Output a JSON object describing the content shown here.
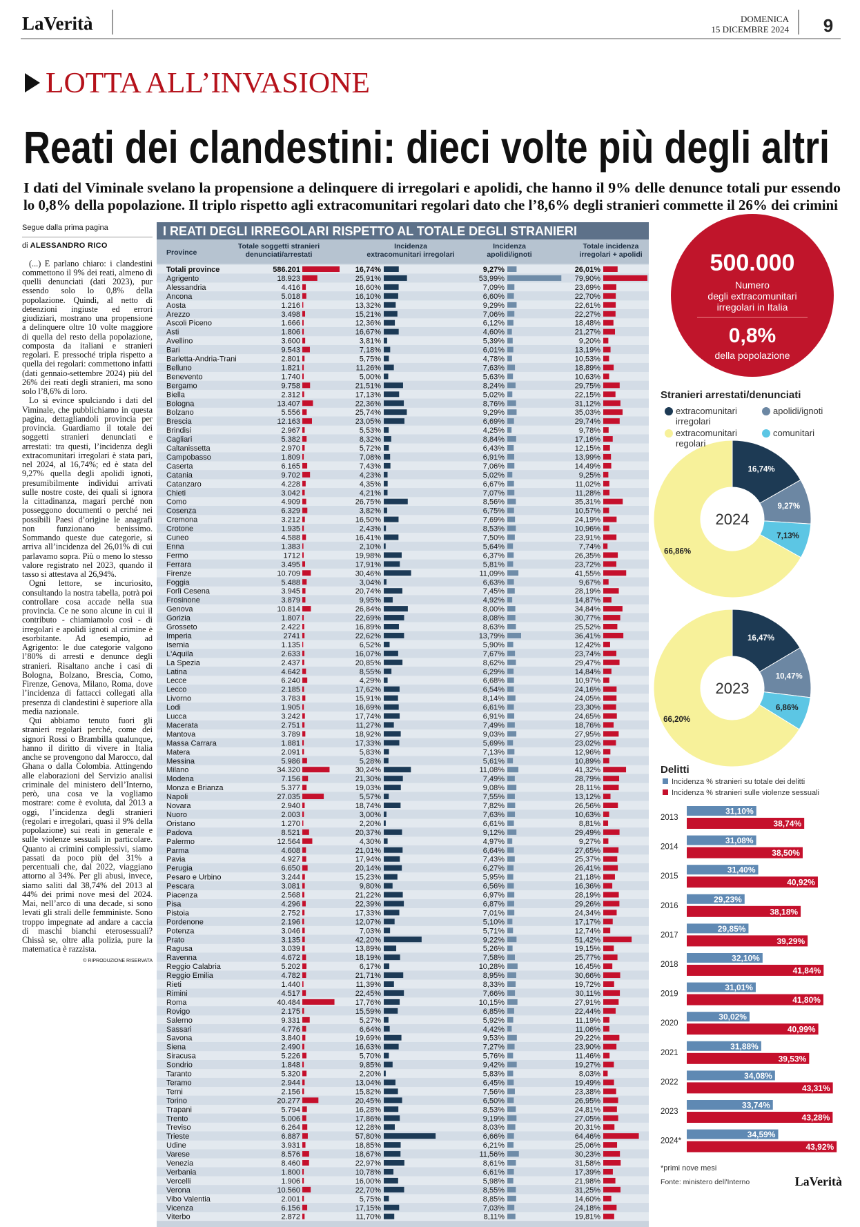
{
  "header": {
    "logo": "LaVerità",
    "day": "DOMENICA",
    "date": "15 DICEMBRE 2024",
    "page": "9"
  },
  "section": "LOTTA ALL’INVASIONE",
  "headline": "Reati dei clandestini: dieci volte più degli altri",
  "subheadline": [
    "I dati del Viminale svelano la propensione a delinquere di irregolari e apolidi, che hanno il 9% delle denunce totali pur essendo",
    "lo 0,8% della popolazione. Il triplo rispetto agli extracomunitari regolari dato che l’8,6% degli stranieri commette il 26% dei crimini"
  ],
  "article": {
    "kicker": "Segue dalla prima pagina",
    "byline_prefix": "di",
    "author": "ALESSANDRO RICO",
    "paragraphs": [
      "(...) E parlano chiaro: i clandestini commettono il 9% dei reati, almeno di quelli denunciati (dati 2023), pur essendo solo lo 0,8% della popolazione. Quindi, al netto di detenzioni ingiuste ed errori giudiziari, mostrano una propensione a delinquere oltre 10 volte maggiore di quella del resto della popolazione, composta da italiani e stranieri regolari. E pressoché tripla rispetto a quella dei regolari: commettono infatti (dati gennaio-settembre 2024) più del 26% dei reati degli stranieri, ma sono solo l’8,6% di loro.",
      "Lo si evince spulciando i dati del Viminale, che pubblichiamo in questa pagina, dettagliandoli provincia per provincia. Guardiamo il totale dei soggetti stranieri denunciati e arrestati: tra questi, l’incidenza degli extracomunitari irregolari è stata pari, nel 2024, al 16,74%; ed è stata del 9,27% quella degli apolidi ignoti, presumibilmente individui arrivati sulle nostre coste, dei quali si ignora la cittadinanza, magari perché non posseggono documenti o perché nei possibili Paesi d’origine le anagrafi non funzionano benissimo. Sommando queste due categorie, si arriva all’incidenza del 26,01% di cui parlavamo sopra. Più o meno lo stesso valore registrato nel 2023, quando il tasso si attestava al 26,94%.",
      "Ogni lettore, se incuriosito, consultando la nostra tabella, potrà poi controllare cosa accade nella sua provincia. Ce ne sono alcune in cui il contributo - chiamiamolo così - di irregolari e apolidi ignoti al crimine è esorbitante. Ad esempio, ad Agrigento: le due categorie valgono l’80% di arresti e denunce degli stranieri. Risaltano anche i casi di Bologna, Bolzano, Brescia, Como, Firenze, Genova, Milano, Roma, dove l’incidenza di fattacci collegati alla presenza di clandestini è superiore alla media nazionale.",
      "Qui abbiamo tenuto fuori gli stranieri regolari perché, come dei signori Rossi o Brambilla qualunque, hanno il diritto di vivere in Italia anche se provengono dal Marocco, dal Ghana o dalla Colombia. Attingendo alle elaborazioni del Servizio analisi criminale del ministero dell’Interno, però, una cosa ve la vogliamo mostrare: come è evoluta, dal 2013 a oggi, l’incidenza degli stranieri (regolari e irregolari, quasi il 9% della popolazione) sui reati in generale e sulle violenze sessuali in particolare. Quanto ai crimini complessivi, siamo passati da poco più del 31% a percentuali che, dal 2022, viaggiano attorno al 34%. Per gli abusi, invece, siamo saliti dal 38,74% del 2013 al 44% dei primi nove mesi del 2024. Mai, nell’arco di una decade, si sono levati gli strali delle femministe. Sono troppo impegnate ad andare a caccia di maschi bianchi eterosessuali? Chissà se, oltre alla polizia, pure la matematica è razzista."
    ],
    "copyright": "© RIPRODUZIONE RISERVATA"
  },
  "table": {
    "title": "I REATI DEGLI IRREGOLARI RISPETTO AL TOTALE DEGLI STRANIERI",
    "columns": [
      [
        "Province"
      ],
      [
        "Totale soggetti stranieri",
        "denunciati/arrestati"
      ],
      [
        "Incidenza",
        "extracomunitari irregolari"
      ],
      [
        "Incidenza",
        "apolidi/ignoti"
      ],
      [
        "Totale incidenza",
        "irregolari + apolidi"
      ]
    ],
    "rows": [
      [
        "Totali province",
        "586.201",
        "16,74%",
        "9,27%",
        "26,01%"
      ],
      [
        "Agrigento",
        "18.923",
        "25,91%",
        "53,99%",
        "79,90%"
      ],
      [
        "Alessandria",
        "4.416",
        "16,60%",
        "7,09%",
        "23,69%"
      ],
      [
        "Ancona",
        "5.018",
        "16,10%",
        "6,60%",
        "22,70%"
      ],
      [
        "Aosta",
        "1.216",
        "13,32%",
        "9,29%",
        "22,61%"
      ],
      [
        "Arezzo",
        "3.498",
        "15,21%",
        "7,06%",
        "22,27%"
      ],
      [
        "Ascoli Piceno",
        "1.666",
        "12,36%",
        "6,12%",
        "18,48%"
      ],
      [
        "Asti",
        "1.806",
        "16,67%",
        "4,60%",
        "21,27%"
      ],
      [
        "Avellino",
        "3.600",
        "3,81%",
        "5,39%",
        "9,20%"
      ],
      [
        "Bari",
        "9.543",
        "7,18%",
        "6,01%",
        "13,19%"
      ],
      [
        "Barletta-Andria-Trani",
        "2.801",
        "5,75%",
        "4,78%",
        "10,53%"
      ],
      [
        "Belluno",
        "1.821",
        "11,26%",
        "7,63%",
        "18,89%"
      ],
      [
        "Benevento",
        "1.740",
        "5,00%",
        "5,63%",
        "10,63%"
      ],
      [
        "Bergamo",
        "9.758",
        "21,51%",
        "8,24%",
        "29,75%"
      ],
      [
        "Biella",
        "2.312",
        "17,13%",
        "5,02%",
        "22,15%"
      ],
      [
        "Bologna",
        "13.407",
        "22,36%",
        "8,76%",
        "31,12%"
      ],
      [
        "Bolzano",
        "5.556",
        "25,74%",
        "9,29%",
        "35,03%"
      ],
      [
        "Brescia",
        "12.163",
        "23,05%",
        "6,69%",
        "29,74%"
      ],
      [
        "Brindisi",
        "2.967",
        "5,53%",
        "4,25%",
        "9,78%"
      ],
      [
        "Cagliari",
        "5.382",
        "8,32%",
        "8,84%",
        "17,16%"
      ],
      [
        "Caltanissetta",
        "2.970",
        "5,72%",
        "6,43%",
        "12,15%"
      ],
      [
        "Campobasso",
        "1.809",
        "7,08%",
        "6,91%",
        "13,99%"
      ],
      [
        "Caserta",
        "6.165",
        "7,43%",
        "7,06%",
        "14,49%"
      ],
      [
        "Catania",
        "9.702",
        "4,23%",
        "5,02%",
        "9,25%"
      ],
      [
        "Catanzaro",
        "4.228",
        "4,35%",
        "6,67%",
        "11,02%"
      ],
      [
        "Chieti",
        "3.042",
        "4,21%",
        "7,07%",
        "11,28%"
      ],
      [
        "Como",
        "4.909",
        "26,75%",
        "8,56%",
        "35,31%"
      ],
      [
        "Cosenza",
        "6.329",
        "3,82%",
        "6,75%",
        "10,57%"
      ],
      [
        "Cremona",
        "3.212",
        "16,50%",
        "7,69%",
        "24,19%"
      ],
      [
        "Crotone",
        "1.935",
        "2,43%",
        "8,53%",
        "10,96%"
      ],
      [
        "Cuneo",
        "4.588",
        "16,41%",
        "7,50%",
        "23,91%"
      ],
      [
        "Enna",
        "1.383",
        "2,10%",
        "5,64%",
        "7,74%"
      ],
      [
        "Fermo",
        "1712",
        "19,98%",
        "6,37%",
        "26,35%"
      ],
      [
        "Ferrara",
        "3.495",
        "17,91%",
        "5,81%",
        "23,72%"
      ],
      [
        "Firenze",
        "10.709",
        "30,46%",
        "11,09%",
        "41,55%"
      ],
      [
        "Foggia",
        "5.488",
        "3,04%",
        "6,63%",
        "9,67%"
      ],
      [
        "Forlì Cesena",
        "3.945",
        "20,74%",
        "7,45%",
        "28,19%"
      ],
      [
        "Frosinone",
        "3.879",
        "9,95%",
        "4,92%",
        "14,87%"
      ],
      [
        "Genova",
        "10.814",
        "26,84%",
        "8,00%",
        "34,84%"
      ],
      [
        "Gorizia",
        "1.807",
        "22,69%",
        "8,08%",
        "30,77%"
      ],
      [
        "Grosseto",
        "2.422",
        "16,89%",
        "8,63%",
        "25,52%"
      ],
      [
        "Imperia",
        "2741",
        "22,62%",
        "13,79%",
        "36,41%"
      ],
      [
        "Isernia",
        "1.135",
        "6,52%",
        "5,90%",
        "12,42%"
      ],
      [
        "L'Aquila",
        "2.633",
        "16,07%",
        "7,67%",
        "23,74%"
      ],
      [
        "La Spezia",
        "2.437",
        "20,85%",
        "8,62%",
        "29,47%"
      ],
      [
        "Latina",
        "4.642",
        "8,55%",
        "6,29%",
        "14,84%"
      ],
      [
        "Lecce",
        "6.240",
        "4,29%",
        "6,68%",
        "10,97%"
      ],
      [
        "Lecco",
        "2.185",
        "17,62%",
        "6,54%",
        "24,16%"
      ],
      [
        "Livorno",
        "3.783",
        "15,91%",
        "8,14%",
        "24,05%"
      ],
      [
        "Lodi",
        "1.905",
        "16,69%",
        "6,61%",
        "23,30%"
      ],
      [
        "Lucca",
        "3.242",
        "17,74%",
        "6,91%",
        "24,65%"
      ],
      [
        "Macerata",
        "2.751",
        "11,27%",
        "7,49%",
        "18,76%"
      ],
      [
        "Mantova",
        "3.789",
        "18,92%",
        "9,03%",
        "27,95%"
      ],
      [
        "Massa Carrara",
        "1.881",
        "17,33%",
        "5,69%",
        "23,02%"
      ],
      [
        "Matera",
        "2.091",
        "5,83%",
        "7,13%",
        "12,96%"
      ],
      [
        "Messina",
        "5.986",
        "5,28%",
        "5,61%",
        "10,89%"
      ],
      [
        "Milano",
        "34.320",
        "30,24%",
        "11,08%",
        "41,32%"
      ],
      [
        "Modena",
        "7.156",
        "21,30%",
        "7,49%",
        "28,79%"
      ],
      [
        "Monza e Brianza",
        "5.377",
        "19,03%",
        "9,08%",
        "28,11%"
      ],
      [
        "Napoli",
        "27.035",
        "5,57%",
        "7,55%",
        "13,12%"
      ],
      [
        "Novara",
        "2.940",
        "18,74%",
        "7,82%",
        "26,56%"
      ],
      [
        "Nuoro",
        "2.003",
        "3,00%",
        "7,63%",
        "10,63%"
      ],
      [
        "Oristano",
        "1.270",
        "2,20%",
        "6,61%",
        "8,81%"
      ],
      [
        "Padova",
        "8.521",
        "20,37%",
        "9,12%",
        "29,49%"
      ],
      [
        "Palermo",
        "12.564",
        "4,30%",
        "4,97%",
        "9,27%"
      ],
      [
        "Parma",
        "4.608",
        "21,01%",
        "6,64%",
        "27,65%"
      ],
      [
        "Pavia",
        "4.927",
        "17,94%",
        "7,43%",
        "25,37%"
      ],
      [
        "Perugia",
        "6.650",
        "20,14%",
        "6,27%",
        "26,41%"
      ],
      [
        "Pesaro e Urbino",
        "3.244",
        "15,23%",
        "5,95%",
        "21,18%"
      ],
      [
        "Pescara",
        "3.081",
        "9,80%",
        "6,56%",
        "16,36%"
      ],
      [
        "Piacenza",
        "2.568",
        "21,22%",
        "6,97%",
        "28,19%"
      ],
      [
        "Pisa",
        "4.296",
        "22,39%",
        "6,87%",
        "29,26%"
      ],
      [
        "Pistoia",
        "2.752",
        "17,33%",
        "7,01%",
        "24,34%"
      ],
      [
        "Pordenone",
        "2.196",
        "12,07%",
        "5,10%",
        "17,17%"
      ],
      [
        "Potenza",
        "3.046",
        "7,03%",
        "5,71%",
        "12,74%"
      ],
      [
        "Prato",
        "3.135",
        "42,20%",
        "9,22%",
        "51,42%"
      ],
      [
        "Ragusa",
        "3.039",
        "13,89%",
        "5,26%",
        "19,15%"
      ],
      [
        "Ravenna",
        "4.672",
        "18,19%",
        "7,58%",
        "25,77%"
      ],
      [
        "Reggio Calabria",
        "5.202",
        "6,17%",
        "10,28%",
        "16,45%"
      ],
      [
        "Reggio Emilia",
        "4.782",
        "21,71%",
        "8,95%",
        "30,66%"
      ],
      [
        "Rieti",
        "1.440",
        "11,39%",
        "8,33%",
        "19,72%"
      ],
      [
        "Rimini",
        "4.517",
        "22,45%",
        "7,66%",
        "30,11%"
      ],
      [
        "Roma",
        "40.484",
        "17,76%",
        "10,15%",
        "27,91%"
      ],
      [
        "Rovigo",
        "2.175",
        "15,59%",
        "6,85%",
        "22,44%"
      ],
      [
        "Salerno",
        "9.331",
        "5,27%",
        "5,92%",
        "11,19%"
      ],
      [
        "Sassari",
        "4.776",
        "6,64%",
        "4,42%",
        "11,06%"
      ],
      [
        "Savona",
        "3.840",
        "19,69%",
        "9,53%",
        "29,22%"
      ],
      [
        "Siena",
        "2.490",
        "16,63%",
        "7,27%",
        "23,90%"
      ],
      [
        "Siracusa",
        "5.226",
        "5,70%",
        "5,76%",
        "11,46%"
      ],
      [
        "Sondrio",
        "1.848",
        "9,85%",
        "9,42%",
        "19,27%"
      ],
      [
        "Taranto",
        "5.320",
        "2,20%",
        "5,83%",
        "8,03%"
      ],
      [
        "Teramo",
        "2.944",
        "13,04%",
        "6,45%",
        "19,49%"
      ],
      [
        "Terni",
        "2.156",
        "15,82%",
        "7,56%",
        "23,38%"
      ],
      [
        "Torino",
        "20.277",
        "20,45%",
        "6,50%",
        "26,95%"
      ],
      [
        "Trapani",
        "5.794",
        "16,28%",
        "8,53%",
        "24,81%"
      ],
      [
        "Trento",
        "5.006",
        "17,86%",
        "9,19%",
        "27,05%"
      ],
      [
        "Treviso",
        "6.264",
        "12,28%",
        "8,03%",
        "20,31%"
      ],
      [
        "Trieste",
        "6.887",
        "57,80%",
        "6,66%",
        "64,46%"
      ],
      [
        "Udine",
        "3.931",
        "18,85%",
        "6,21%",
        "25,06%"
      ],
      [
        "Varese",
        "8.576",
        "18,67%",
        "11,56%",
        "30,23%"
      ],
      [
        "Venezia",
        "8.460",
        "22,97%",
        "8,61%",
        "31,58%"
      ],
      [
        "Verbania",
        "1.800",
        "10,78%",
        "6,61%",
        "17,39%"
      ],
      [
        "Vercelli",
        "1.906",
        "16,00%",
        "5,98%",
        "21,98%"
      ],
      [
        "Verona",
        "10.560",
        "22,70%",
        "8,55%",
        "31,25%"
      ],
      [
        "Vibo Valentia",
        "2.001",
        "5,75%",
        "8,85%",
        "14,60%"
      ],
      [
        "Vicenza",
        "6.156",
        "17,15%",
        "7,03%",
        "24,18%"
      ],
      [
        "Viterbo",
        "2.872",
        "11,70%",
        "8,11%",
        "19,81%"
      ]
    ]
  },
  "highlight": {
    "value": "500.000",
    "label": [
      "Numero",
      "degli extracomunitari",
      "irregolari in Italia"
    ],
    "share": "0,8%",
    "share_label": "della popolazione"
  },
  "chart_data": [
    {
      "type": "donut",
      "title": "Stranieri arrestati/denunciati",
      "categories": [
        "2024",
        "2023"
      ],
      "series": [
        {
          "name": "extracomunitari irregolari",
          "color": "#1d3a54",
          "values": [
            16.74,
            16.47
          ],
          "value_labels": [
            "16,74%",
            "16,47%"
          ]
        },
        {
          "name": "apolidi/ignoti",
          "color": "#6c87a3",
          "values": [
            9.27,
            10.47
          ],
          "value_labels": [
            "9,27%",
            "10,47%"
          ]
        },
        {
          "name": "comunitari",
          "color": "#5cc6e4",
          "values": [
            7.13,
            6.86
          ],
          "value_labels": [
            "7,13%",
            "6,86%"
          ]
        },
        {
          "name": "extracomunitari regolari",
          "color": "#f7f19a",
          "values": [
            66.86,
            66.2
          ],
          "value_labels": [
            "66,86%",
            "66,20%"
          ]
        }
      ]
    },
    {
      "type": "bar",
      "orientation": "horizontal",
      "title": "Delitti",
      "categories": [
        "2013",
        "2014",
        "2015",
        "2016",
        "2017",
        "2018",
        "2019",
        "2020",
        "2021",
        "2022",
        "2023",
        "2024*"
      ],
      "series": [
        {
          "name": "Incidenza % stranieri su totale dei delitti",
          "color": "#5f89b3",
          "values": [
            31.1,
            31.08,
            31.4,
            29.23,
            29.85,
            32.1,
            31.01,
            30.02,
            31.88,
            34.08,
            33.74,
            34.59
          ],
          "value_labels": [
            "31,10%",
            "31,08%",
            "31,40%",
            "29,23%",
            "29,85%",
            "32,10%",
            "31,01%",
            "30,02%",
            "31,88%",
            "34,08%",
            "33,74%",
            "34,59%"
          ]
        },
        {
          "name": "Incidenza % stranieri sulle violenze sessuali",
          "color": "#c5102c",
          "values": [
            38.74,
            38.5,
            40.92,
            38.18,
            39.29,
            41.84,
            41.8,
            40.99,
            39.53,
            43.31,
            43.28,
            43.92
          ],
          "value_labels": [
            "38,74%",
            "38,50%",
            "40,92%",
            "38,18%",
            "39,29%",
            "41,84%",
            "41,80%",
            "40,99%",
            "39,53%",
            "43,31%",
            "43,28%",
            "43,92%"
          ]
        }
      ],
      "xlim": [
        20,
        45
      ],
      "note": "*primi nove mesi",
      "source": "Fonte: ministero dell'Interno"
    }
  ]
}
